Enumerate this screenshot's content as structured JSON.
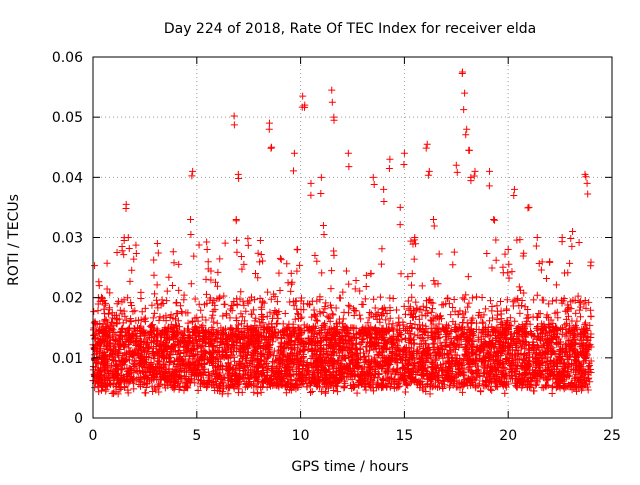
{
  "chart_data": {
    "type": "scatter",
    "title": "Day 224 of 2018, Rate Of TEC Index for receiver elda",
    "xlabel": "GPS time / hours",
    "ylabel": "ROTI / TECUs",
    "xlim": [
      0,
      25
    ],
    "ylim": [
      0,
      0.06
    ],
    "x_ticks": [
      0,
      5,
      10,
      15,
      20,
      25
    ],
    "y_ticks": [
      0,
      0.01,
      0.02,
      0.03,
      0.04,
      0.05,
      0.06
    ],
    "x_tick_labels": [
      "0",
      "5",
      "10",
      "15",
      "20",
      "25"
    ],
    "y_tick_labels": [
      "0",
      "0.01",
      "0.02",
      "0.03",
      "0.04",
      "0.05",
      "0.06"
    ],
    "grid": true,
    "marker": "+",
    "color": "#ff0000",
    "series": [
      {
        "name": "ROTI",
        "x": [
          0.1,
          0.3,
          0.5,
          1.4,
          1.5,
          1.6,
          1.7,
          1.8,
          2.3,
          3.1,
          4.7,
          4.8,
          5.5,
          6.8,
          6.9,
          7.0,
          8.5,
          8.6,
          9.7,
          10.1,
          10.2,
          10.5,
          11.0,
          11.1,
          11.5,
          11.6,
          12.3,
          13.5,
          14.0,
          14.3,
          14.8,
          15.0,
          15.5,
          16.1,
          16.2,
          16.4,
          17.5,
          17.8,
          17.9,
          18.0,
          18.1,
          18.2,
          18.4,
          19.1,
          19.3,
          20.0,
          20.3,
          21.0,
          21.4,
          22.0,
          22.6,
          23.1,
          23.7,
          23.8
        ],
        "y": [
          0.016,
          0.022,
          0.013,
          0.0285,
          0.0295,
          0.0355,
          0.03,
          0.013,
          0.015,
          0.029,
          0.033,
          0.041,
          0.028,
          0.0502,
          0.033,
          0.0405,
          0.049,
          0.045,
          0.044,
          0.0535,
          0.052,
          0.039,
          0.04,
          0.032,
          0.0545,
          0.05,
          0.044,
          0.04,
          0.038,
          0.043,
          0.035,
          0.044,
          0.03,
          0.0455,
          0.041,
          0.033,
          0.042,
          0.0575,
          0.054,
          0.048,
          0.0445,
          0.04,
          0.041,
          0.041,
          0.033,
          0.028,
          0.038,
          0.035,
          0.03,
          0.026,
          0.03,
          0.031,
          0.0405,
          0.039
        ]
      }
    ],
    "background_band": {
      "description_level": "dense",
      "lower_typical": 0.005,
      "upper_typical": 0.02,
      "floor": 0.002
    }
  }
}
